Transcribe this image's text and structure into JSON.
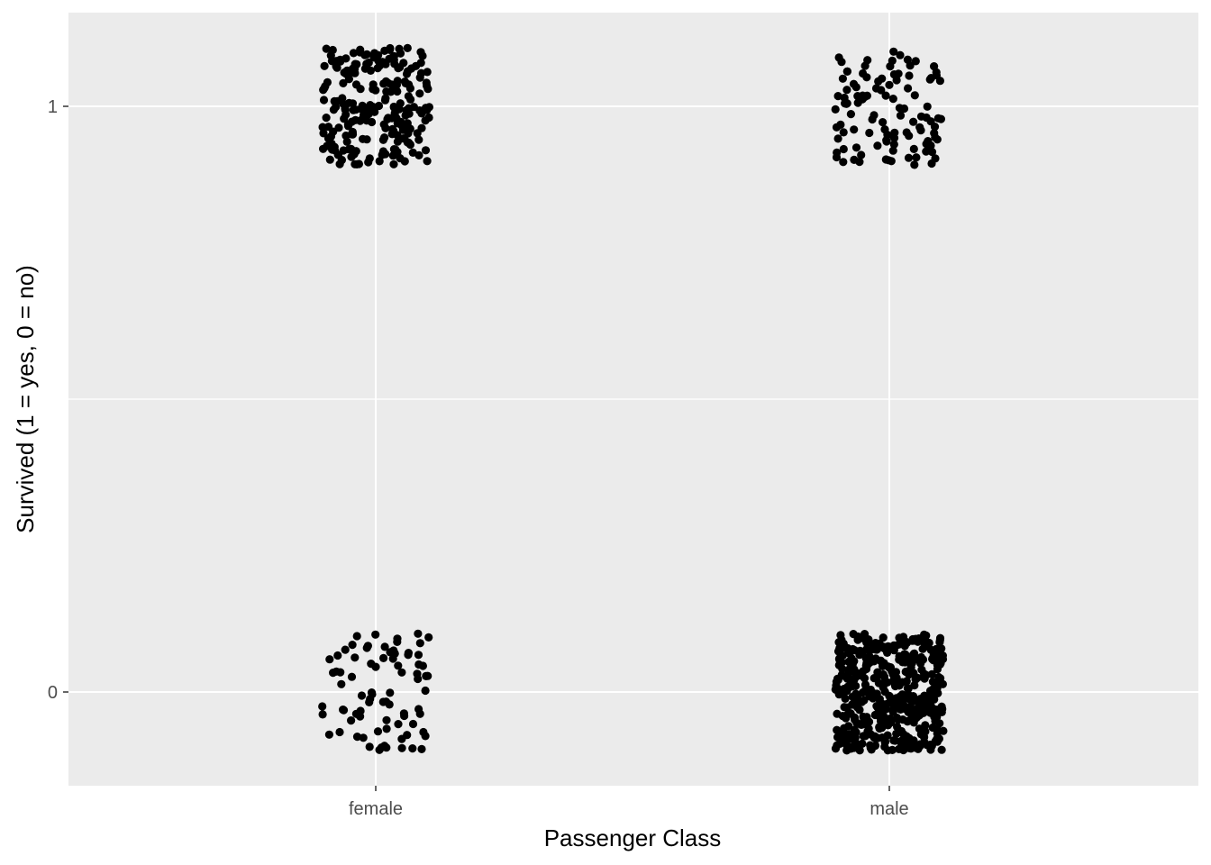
{
  "chart_data": {
    "type": "scatter",
    "jitter": true,
    "title": "",
    "xlabel": "Passenger Class",
    "ylabel": "Survived (1 = yes, 0 = no)",
    "categories": [
      "female",
      "male"
    ],
    "y_ticks": [
      0,
      1
    ],
    "y_tick_labels": [
      "0",
      "1"
    ],
    "ylim": [
      -0.16,
      1.16
    ],
    "grid": true,
    "legend": "none",
    "background_color": "#ebebeb",
    "grid_color": "#ffffff",
    "point_color": "#000000",
    "groups": [
      {
        "category": "female",
        "y": 1,
        "count": 233
      },
      {
        "category": "female",
        "y": 0,
        "count": 81
      },
      {
        "category": "male",
        "y": 1,
        "count": 109
      },
      {
        "category": "male",
        "y": 0,
        "count": 468
      }
    ]
  }
}
